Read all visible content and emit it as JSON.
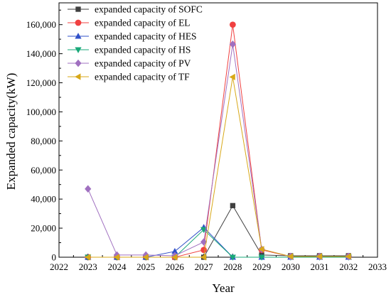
{
  "chart_data": {
    "type": "line",
    "xlabel": "Year",
    "ylabel": "Expanded capacity(kW)",
    "xlim": [
      2022,
      2033
    ],
    "ylim": [
      0,
      175000
    ],
    "x_ticks": [
      2022,
      2023,
      2024,
      2025,
      2026,
      2027,
      2028,
      2029,
      2030,
      2031,
      2032,
      2033
    ],
    "y_ticks": [
      0,
      20000,
      40000,
      60000,
      80000,
      100000,
      120000,
      140000,
      160000
    ],
    "y_tick_labels": [
      "0",
      "20,000",
      "40,000",
      "60,000",
      "80,000",
      "100,000",
      "120,000",
      "140,000",
      "160,000"
    ],
    "x": [
      2023,
      2024,
      2025,
      2026,
      2027,
      2028,
      2029,
      2030,
      2031,
      2032
    ],
    "grid": false,
    "legend_position": "top-left",
    "series": [
      {
        "name": "expanded capacity of SOFC",
        "color": "#404040",
        "marker": "square",
        "values": [
          0,
          0,
          0,
          0,
          0,
          35500,
          1500,
          1000,
          1000,
          1000
        ]
      },
      {
        "name": "expanded capacity of EL",
        "color": "#f04040",
        "marker": "circle",
        "values": [
          0,
          0,
          0,
          0,
          5000,
          160000,
          5000,
          500,
          500,
          500
        ]
      },
      {
        "name": "expanded capacity of HES",
        "color": "#3050c8",
        "marker": "triangle-up",
        "values": [
          0,
          0,
          0,
          4000,
          20500,
          0,
          0,
          0,
          0,
          0
        ]
      },
      {
        "name": "expanded capacity of HS",
        "color": "#18a878",
        "marker": "triangle-down",
        "values": [
          0,
          0,
          0,
          0,
          19000,
          0,
          0,
          0,
          0,
          0
        ]
      },
      {
        "name": "expanded capacity of PV",
        "color": "#a070c0",
        "marker": "diamond",
        "values": [
          47000,
          1500,
          1500,
          1000,
          10500,
          146500,
          5500,
          500,
          500,
          500
        ]
      },
      {
        "name": "expanded capacity of TF",
        "color": "#d8a818",
        "marker": "triangle-left",
        "values": [
          0,
          0,
          0,
          0,
          0,
          124000,
          5500,
          500,
          500,
          500
        ]
      }
    ]
  }
}
